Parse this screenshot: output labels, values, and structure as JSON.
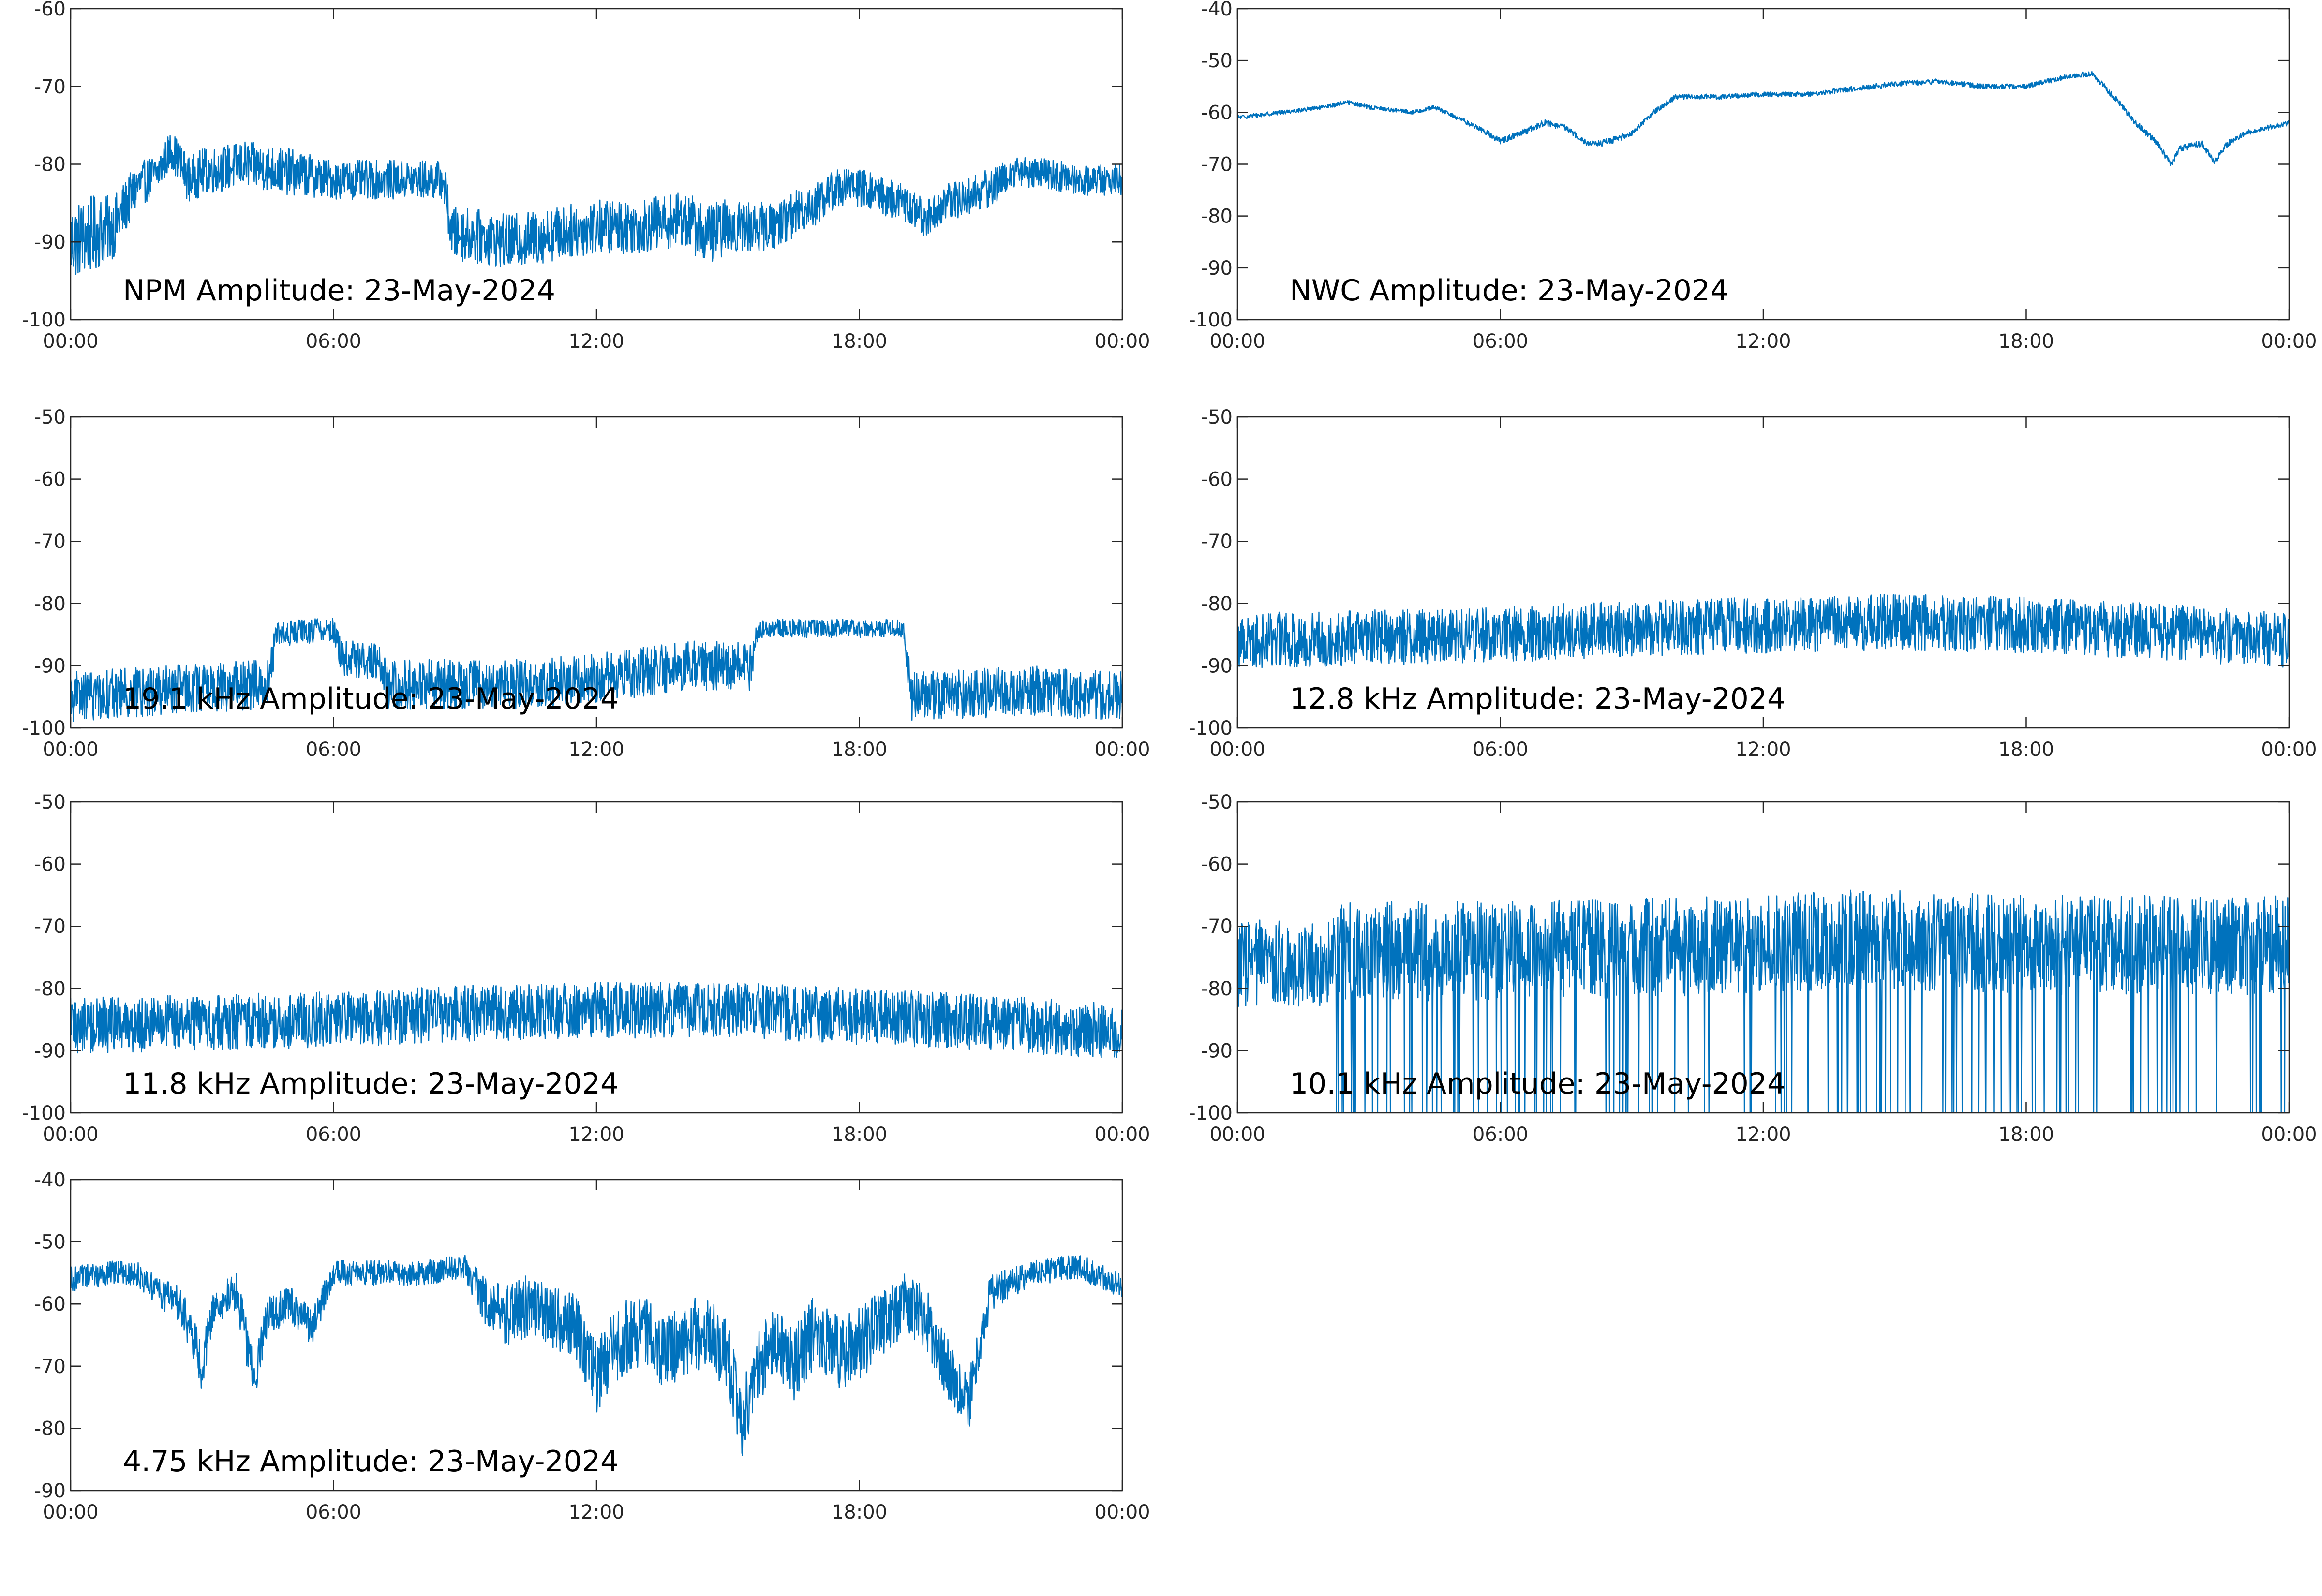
{
  "figure": {
    "background": "#ffffff",
    "series_color": "#0072BD",
    "axis_color": "#262626"
  },
  "chart_data": [
    {
      "type": "line",
      "title": "NPM Amplitude: 23-May-2024",
      "x_ticks": [
        "00:00",
        "06:00",
        "12:00",
        "18:00",
        "00:00"
      ],
      "xlim": [
        "00:00",
        "24:00"
      ],
      "ylim": [
        -100,
        -60
      ],
      "y_ticks": [
        -60,
        -70,
        -80,
        -90,
        -100
      ],
      "grid": false,
      "series": [
        {
          "x_hours": [
            0,
            0.5,
            1,
            1.5,
            2,
            2.3,
            2.7,
            3,
            4,
            5,
            6,
            7,
            8,
            8.5,
            8.7,
            9,
            10,
            11,
            12,
            13,
            14,
            14.5,
            15,
            16,
            17,
            17.5,
            18,
            19,
            19.5,
            20,
            21,
            21.5,
            22,
            23,
            24
          ],
          "y_envelope_center": [
            -90,
            -89,
            -88,
            -83,
            -81,
            -78,
            -82,
            -81,
            -80,
            -81,
            -82,
            -82,
            -82,
            -82,
            -89,
            -89,
            -90,
            -89,
            -88,
            -88,
            -87,
            -89,
            -88,
            -88,
            -85,
            -83,
            -83,
            -85,
            -87,
            -85,
            -83,
            -81,
            -81,
            -82,
            -82
          ],
          "y_envelope_halfwidth": [
            5,
            5,
            4,
            3,
            2.5,
            2.5,
            3,
            3,
            3,
            3,
            2.5,
            2.5,
            2.5,
            2.5,
            3.5,
            3.5,
            3.5,
            3.5,
            3.5,
            3.5,
            3.5,
            4,
            3.5,
            3,
            3,
            2.5,
            2.5,
            2.5,
            2.5,
            2.5,
            2.5,
            2,
            2,
            2,
            2
          ]
        }
      ]
    },
    {
      "type": "line",
      "title": "NWC Amplitude: 23-May-2024",
      "x_ticks": [
        "00:00",
        "06:00",
        "12:00",
        "18:00",
        "00:00"
      ],
      "xlim": [
        "00:00",
        "24:00"
      ],
      "ylim": [
        -100,
        -40
      ],
      "y_ticks": [
        -40,
        -50,
        -60,
        -70,
        -80,
        -90,
        -100
      ],
      "grid": false,
      "series": [
        {
          "x_hours": [
            0,
            1,
            2,
            2.5,
            3,
            4,
            4.5,
            5,
            5.5,
            6,
            6.5,
            7,
            7.5,
            8,
            8.3,
            8.7,
            9,
            9.5,
            10,
            11,
            12,
            13,
            14,
            15,
            16,
            17,
            18,
            18.5,
            19,
            19.5,
            20,
            20.5,
            21,
            21.3,
            21.5,
            22,
            22.3,
            22.6,
            23,
            24
          ],
          "y_envelope_center": [
            -61,
            -60,
            -59,
            -58,
            -59,
            -60,
            -59,
            -61,
            -63,
            -65.5,
            -64,
            -62,
            -63,
            -66,
            -66,
            -65,
            -64,
            -60,
            -57,
            -57,
            -56.5,
            -56.5,
            -55.5,
            -54.5,
            -54,
            -55,
            -55,
            -54,
            -53,
            -52.5,
            -57,
            -62,
            -66,
            -70,
            -67,
            -66,
            -69.5,
            -66,
            -64,
            -62
          ],
          "y_envelope_halfwidth": [
            0.4,
            0.4,
            0.4,
            0.4,
            0.4,
            0.4,
            0.4,
            0.4,
            0.5,
            0.6,
            0.6,
            0.6,
            0.6,
            0.6,
            0.6,
            0.6,
            0.5,
            0.5,
            0.5,
            0.5,
            0.5,
            0.5,
            0.5,
            0.5,
            0.5,
            0.5,
            0.5,
            0.5,
            0.5,
            0.5,
            0.6,
            0.6,
            0.6,
            0.6,
            0.6,
            0.6,
            0.6,
            0.6,
            0.5,
            0.5
          ]
        }
      ]
    },
    {
      "type": "line",
      "title": "19.1 kHz Amplitude: 23-May-2024",
      "x_ticks": [
        "00:00",
        "06:00",
        "12:00",
        "18:00",
        "00:00"
      ],
      "xlim": [
        "00:00",
        "24:00"
      ],
      "ylim": [
        -100,
        -50
      ],
      "y_ticks": [
        -50,
        -60,
        -70,
        -80,
        -90,
        -100
      ],
      "grid": false,
      "series": [
        {
          "x_hours": [
            0,
            2,
            4.5,
            4.7,
            6,
            6.2,
            7,
            7.2,
            10,
            12,
            14,
            15.5,
            15.7,
            18,
            19,
            19.2,
            22,
            24
          ],
          "y_envelope_center": [
            -95,
            -94,
            -93,
            -85,
            -84,
            -89,
            -89,
            -93,
            -93,
            -92,
            -90,
            -90,
            -84,
            -84,
            -84,
            -95,
            -94,
            -95
          ],
          "y_envelope_halfwidth": [
            4,
            4,
            4,
            2,
            2,
            3,
            3,
            4,
            4,
            4,
            4,
            4,
            1.5,
            1.5,
            1.5,
            4,
            4,
            4
          ]
        }
      ]
    },
    {
      "type": "line",
      "title": "12.8 kHz Amplitude: 23-May-2024",
      "x_ticks": [
        "00:00",
        "06:00",
        "12:00",
        "18:00",
        "00:00"
      ],
      "xlim": [
        "00:00",
        "24:00"
      ],
      "ylim": [
        -100,
        -50
      ],
      "y_ticks": [
        -50,
        -60,
        -70,
        -80,
        -90,
        -100
      ],
      "grid": false,
      "series": [
        {
          "x_hours": [
            0,
            3,
            6,
            9,
            12,
            15,
            18,
            21,
            24
          ],
          "y_envelope_center": [
            -86,
            -85.5,
            -85,
            -84,
            -83.5,
            -83,
            -83.5,
            -84.5,
            -86
          ],
          "y_envelope_halfwidth": [
            4.5,
            4.5,
            4.5,
            4.5,
            4.5,
            4.5,
            4.5,
            4.5,
            4.5
          ]
        }
      ]
    },
    {
      "type": "line",
      "title": "11.8 kHz Amplitude: 23-May-2024",
      "x_ticks": [
        "00:00",
        "06:00",
        "12:00",
        "18:00",
        "00:00"
      ],
      "xlim": [
        "00:00",
        "24:00"
      ],
      "ylim": [
        -100,
        -50
      ],
      "y_ticks": [
        -50,
        -60,
        -70,
        -80,
        -90,
        -100
      ],
      "grid": false,
      "series": [
        {
          "x_hours": [
            0,
            3,
            6,
            9,
            12,
            15,
            18,
            21,
            24
          ],
          "y_envelope_center": [
            -86,
            -85.5,
            -85,
            -84,
            -83.5,
            -83.5,
            -84.5,
            -85.5,
            -87
          ],
          "y_envelope_halfwidth": [
            4.5,
            4.5,
            4.5,
            4.5,
            4.5,
            4.5,
            4.5,
            4.5,
            4.5
          ]
        }
      ]
    },
    {
      "type": "line",
      "title": "10.1 kHz Amplitude: 23-May-2024",
      "x_ticks": [
        "00:00",
        "06:00",
        "12:00",
        "18:00",
        "00:00"
      ],
      "xlim": [
        "00:00",
        "24:00"
      ],
      "ylim": [
        -100,
        -50
      ],
      "y_ticks": [
        -50,
        -60,
        -70,
        -80,
        -90,
        -100
      ],
      "grid": false,
      "series": [
        {
          "x_hours": [
            0,
            2,
            2.2,
            6,
            12,
            14,
            18,
            22,
            24
          ],
          "y_envelope_center": [
            -76,
            -76,
            -74,
            -74,
            -73,
            -72,
            -73,
            -73,
            -73
          ],
          "y_envelope_halfwidth": [
            7,
            7,
            8,
            8,
            8,
            8,
            8,
            8,
            8
          ],
          "deep_drops_start_hour": 2.2,
          "deep_drop_floor": -100
        }
      ]
    },
    {
      "type": "line",
      "title": "4.75 kHz Amplitude: 23-May-2024",
      "x_ticks": [
        "00:00",
        "06:00",
        "12:00",
        "18:00",
        "00:00"
      ],
      "xlim": [
        "00:00",
        "24:00"
      ],
      "ylim": [
        -90,
        -40
      ],
      "y_ticks": [
        -40,
        -50,
        -60,
        -70,
        -80,
        -90
      ],
      "grid": false,
      "series": [
        {
          "x_hours": [
            0,
            1,
            1.5,
            2,
            2.5,
            2.8,
            3,
            3.3,
            3.8,
            4,
            4.2,
            4.5,
            5,
            5.5,
            6,
            7,
            8,
            9,
            9.5,
            10,
            10.5,
            11,
            11.5,
            12,
            12.5,
            13,
            13.5,
            14,
            14.5,
            15,
            15.3,
            15.6,
            16,
            16.5,
            17,
            17.5,
            18,
            18.5,
            19,
            19.5,
            20,
            20.5,
            21,
            22,
            23,
            24
          ],
          "y_envelope_center": [
            -56,
            -55,
            -55,
            -58,
            -60,
            -66,
            -70,
            -60,
            -58,
            -66,
            -72,
            -62,
            -60,
            -64,
            -55,
            -55,
            -55,
            -54,
            -60,
            -62,
            -60,
            -62,
            -64,
            -72,
            -66,
            -64,
            -68,
            -66,
            -64,
            -68,
            -80,
            -72,
            -66,
            -70,
            -64,
            -68,
            -66,
            -64,
            -60,
            -62,
            -70,
            -76,
            -58,
            -55,
            -54,
            -57
          ],
          "y_envelope_halfwidth": [
            2,
            2,
            2,
            2.5,
            3,
            4,
            4,
            3,
            3,
            4,
            4,
            3,
            3,
            3,
            2,
            2,
            2,
            2,
            4,
            5,
            5,
            5,
            6,
            6,
            6,
            6,
            6,
            6,
            6,
            6,
            6,
            6,
            6,
            6,
            6,
            6,
            6,
            6,
            5,
            5,
            5,
            5,
            3,
            2,
            2,
            2
          ]
        }
      ]
    }
  ]
}
